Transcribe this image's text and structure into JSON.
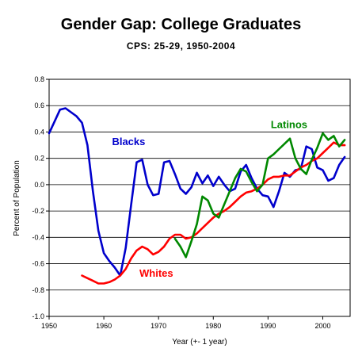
{
  "chart_data": {
    "type": "line",
    "title": "Gender Gap: College Graduates",
    "subtitle": "CPS: 25-29, 1950-2004",
    "xlabel": "Year (+- 1 year)",
    "ylabel": "Percent of Population",
    "xlim": [
      1950,
      2005
    ],
    "ylim": [
      -1.0,
      0.8
    ],
    "xticks": [
      1950,
      1960,
      1970,
      1980,
      1990,
      2000
    ],
    "yticks": [
      -1.0,
      -0.8,
      -0.6,
      -0.4,
      -0.2,
      0.0,
      0.2,
      0.4,
      0.6,
      0.8
    ],
    "ytick_labels": [
      "-1.0",
      "-0.8",
      "-0.6",
      "-0.4",
      "-0.2",
      "0.0",
      "0.2",
      "0.4",
      "0.6",
      "0.8"
    ],
    "grid": "horizontal",
    "legend": "inline labels",
    "series": [
      {
        "name": "Blacks",
        "color": "#0000cc",
        "x": [
          1950,
          1951,
          1952,
          1953,
          1954,
          1955,
          1956,
          1957,
          1958,
          1959,
          1960,
          1961,
          1962,
          1963,
          1964,
          1965,
          1966,
          1967,
          1968,
          1969,
          1970,
          1971,
          1972,
          1973,
          1974,
          1975,
          1976,
          1977,
          1978,
          1979,
          1980,
          1981,
          1982,
          1983,
          1984,
          1985,
          1986,
          1987,
          1988,
          1989,
          1990,
          1991,
          1992,
          1993,
          1994,
          1995,
          1996,
          1997,
          1998,
          1999,
          2000,
          2001,
          2002,
          2003,
          2004
        ],
        "values": [
          0.39,
          0.48,
          0.57,
          0.58,
          0.55,
          0.52,
          0.47,
          0.3,
          -0.05,
          -0.35,
          -0.52,
          -0.58,
          -0.63,
          -0.69,
          -0.48,
          -0.15,
          0.17,
          0.19,
          0.0,
          -0.08,
          -0.07,
          0.17,
          0.18,
          0.08,
          -0.03,
          -0.07,
          -0.02,
          0.09,
          0.01,
          0.07,
          -0.01,
          0.06,
          0.0,
          -0.05,
          -0.03,
          0.1,
          0.15,
          0.05,
          -0.03,
          -0.08,
          -0.09,
          -0.17,
          -0.05,
          0.09,
          0.06,
          0.11,
          0.12,
          0.29,
          0.27,
          0.13,
          0.11,
          0.03,
          0.05,
          0.15,
          0.21
        ]
      },
      {
        "name": "Whites",
        "color": "#ff0000",
        "x": [
          1956,
          1957,
          1958,
          1959,
          1960,
          1961,
          1962,
          1963,
          1964,
          1965,
          1966,
          1967,
          1968,
          1969,
          1970,
          1971,
          1972,
          1973,
          1974,
          1975,
          1976,
          1977,
          1978,
          1979,
          1980,
          1981,
          1982,
          1983,
          1984,
          1985,
          1986,
          1987,
          1988,
          1989,
          1990,
          1991,
          1992,
          1993,
          1994,
          1995,
          1996,
          1997,
          1998,
          1999,
          2000,
          2001,
          2002,
          2003,
          2004
        ],
        "values": [
          -0.69,
          -0.71,
          -0.73,
          -0.75,
          -0.75,
          -0.74,
          -0.72,
          -0.69,
          -0.64,
          -0.56,
          -0.5,
          -0.47,
          -0.49,
          -0.53,
          -0.51,
          -0.47,
          -0.41,
          -0.38,
          -0.38,
          -0.41,
          -0.4,
          -0.37,
          -0.33,
          -0.29,
          -0.25,
          -0.22,
          -0.2,
          -0.17,
          -0.13,
          -0.09,
          -0.06,
          -0.05,
          -0.03,
          0.0,
          0.04,
          0.06,
          0.06,
          0.07,
          0.07,
          0.1,
          0.13,
          0.15,
          0.18,
          0.2,
          0.24,
          0.28,
          0.32,
          0.3,
          0.3
        ]
      },
      {
        "name": "Latinos",
        "color": "#008800",
        "x": [
          1973,
          1974,
          1975,
          1976,
          1977,
          1978,
          1979,
          1980,
          1981,
          1982,
          1983,
          1984,
          1985,
          1986,
          1987,
          1988,
          1989,
          1990,
          1991,
          1992,
          1993,
          1994,
          1995,
          1996,
          1997,
          1998,
          1999,
          2000,
          2001,
          2002,
          2003,
          2004
        ],
        "values": [
          -0.41,
          -0.47,
          -0.55,
          -0.43,
          -0.3,
          -0.09,
          -0.12,
          -0.22,
          -0.25,
          -0.15,
          -0.05,
          0.05,
          0.12,
          0.1,
          0.02,
          -0.05,
          0.0,
          0.2,
          0.23,
          0.27,
          0.31,
          0.35,
          0.2,
          0.12,
          0.08,
          0.19,
          0.28,
          0.39,
          0.34,
          0.37,
          0.29,
          0.34
        ]
      }
    ],
    "annotations": [
      {
        "text": "Blacks",
        "x": 1961.5,
        "y": 0.3,
        "color": "#0000cc"
      },
      {
        "text": "Whites",
        "x": 1966.5,
        "y": -0.7,
        "color": "#ff0000"
      },
      {
        "text": "Latinos",
        "x": 1990.5,
        "y": 0.43,
        "color": "#008800"
      }
    ]
  }
}
